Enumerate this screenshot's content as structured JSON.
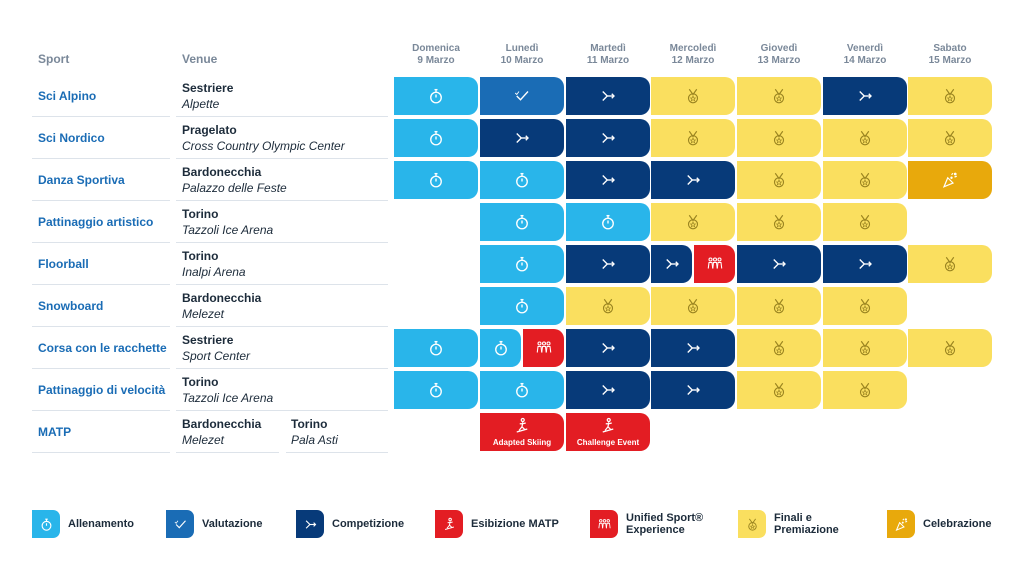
{
  "headers": {
    "sport": "Sport",
    "venue": "Venue"
  },
  "days": [
    {
      "name": "Domenica",
      "date": "9 Marzo"
    },
    {
      "name": "Lunedì",
      "date": "10 Marzo"
    },
    {
      "name": "Martedì",
      "date": "11 Marzo"
    },
    {
      "name": "Mercoledì",
      "date": "12 Marzo"
    },
    {
      "name": "Giovedì",
      "date": "13 Marzo"
    },
    {
      "name": "Venerdì",
      "date": "14 Marzo"
    },
    {
      "name": "Sabato",
      "date": "15 Marzo"
    }
  ],
  "rows": [
    {
      "sport": "Sci Alpino",
      "venues": [
        {
          "name": "Sestriere",
          "site": "Alpette"
        }
      ],
      "cells": [
        [
          "train"
        ],
        [
          "eval"
        ],
        [
          "comp"
        ],
        [
          "final"
        ],
        [
          "final"
        ],
        [
          "comp"
        ],
        [
          "final"
        ]
      ]
    },
    {
      "sport": "Sci Nordico",
      "venues": [
        {
          "name": "Pragelato",
          "site": "Cross Country Olympic Center"
        }
      ],
      "cells": [
        [
          "train"
        ],
        [
          "comp"
        ],
        [
          "comp"
        ],
        [
          "final"
        ],
        [
          "final"
        ],
        [
          "final"
        ],
        [
          "final"
        ]
      ]
    },
    {
      "sport": "Danza Sportiva",
      "venues": [
        {
          "name": "Bardonecchia",
          "site": "Palazzo delle Feste"
        }
      ],
      "cells": [
        [
          "train"
        ],
        [
          "train"
        ],
        [
          "comp"
        ],
        [
          "comp"
        ],
        [
          "final"
        ],
        [
          "final"
        ],
        [
          "celeb"
        ]
      ]
    },
    {
      "sport": "Pattinaggio artistico",
      "venues": [
        {
          "name": "Torino",
          "site": "Tazzoli Ice Arena"
        }
      ],
      "cells": [
        [],
        [
          "train"
        ],
        [
          "train"
        ],
        [
          "final"
        ],
        [
          "final"
        ],
        [
          "final"
        ],
        []
      ]
    },
    {
      "sport": "Floorball",
      "venues": [
        {
          "name": "Torino",
          "site": "Inalpi Arena"
        }
      ],
      "cells": [
        [],
        [
          "train"
        ],
        [
          "comp"
        ],
        [
          "comp",
          "unif"
        ],
        [
          "comp"
        ],
        [
          "comp"
        ],
        [
          "final"
        ]
      ]
    },
    {
      "sport": "Snowboard",
      "venues": [
        {
          "name": "Bardonecchia",
          "site": "Melezet"
        }
      ],
      "cells": [
        [],
        [
          "train"
        ],
        [
          "final"
        ],
        [
          "final"
        ],
        [
          "final"
        ],
        [
          "final"
        ],
        []
      ]
    },
    {
      "sport": "Corsa con le racchette",
      "venues": [
        {
          "name": "Sestriere",
          "site": "Sport Center"
        }
      ],
      "cells": [
        [
          "train"
        ],
        [
          "train",
          "unif"
        ],
        [
          "comp"
        ],
        [
          "comp"
        ],
        [
          "final"
        ],
        [
          "final"
        ],
        [
          "final"
        ]
      ]
    },
    {
      "sport": "Pattinaggio di velocità",
      "venues": [
        {
          "name": "Torino",
          "site": "Tazzoli Ice Arena"
        }
      ],
      "cells": [
        [
          "train"
        ],
        [
          "train"
        ],
        [
          "comp"
        ],
        [
          "comp"
        ],
        [
          "final"
        ],
        [
          "final"
        ],
        []
      ]
    },
    {
      "sport": "MATP",
      "venues": [
        {
          "name": "Bardonecchia",
          "site": "Melezet"
        },
        {
          "name": "Torino",
          "site": "Pala Asti"
        }
      ],
      "cells": [
        [],
        [
          "matp"
        ],
        [
          "matp"
        ],
        [],
        [],
        [],
        []
      ],
      "labels": [
        "",
        "Adapted Skiing",
        "Challenge Event",
        "",
        "",
        "",
        ""
      ]
    }
  ],
  "legend": [
    {
      "key": "train",
      "label": "Allenamento",
      "icon": "stopwatch-icon"
    },
    {
      "key": "eval",
      "label": "Valutazione",
      "icon": "checkmarks-icon"
    },
    {
      "key": "comp",
      "label": "Competizione",
      "icon": "arrow-right-icon"
    },
    {
      "key": "matp",
      "label": "Esibizione MATP",
      "icon": "adapted-athlete-icon"
    },
    {
      "key": "unif",
      "label": "Unified Sport® Experience",
      "icon": "team-icon"
    },
    {
      "key": "final",
      "label": "Finali e Premiazione",
      "icon": "medal-icon"
    },
    {
      "key": "celeb",
      "label": "Celebrazione",
      "icon": "party-popper-icon"
    }
  ],
  "colors": {
    "train": "#29b5ea",
    "eval": "#1a6cb5",
    "comp": "#073a79",
    "final": "#fadf5f",
    "celeb": "#e8a90c",
    "matp": "#e31d23",
    "unif": "#e31d23"
  }
}
